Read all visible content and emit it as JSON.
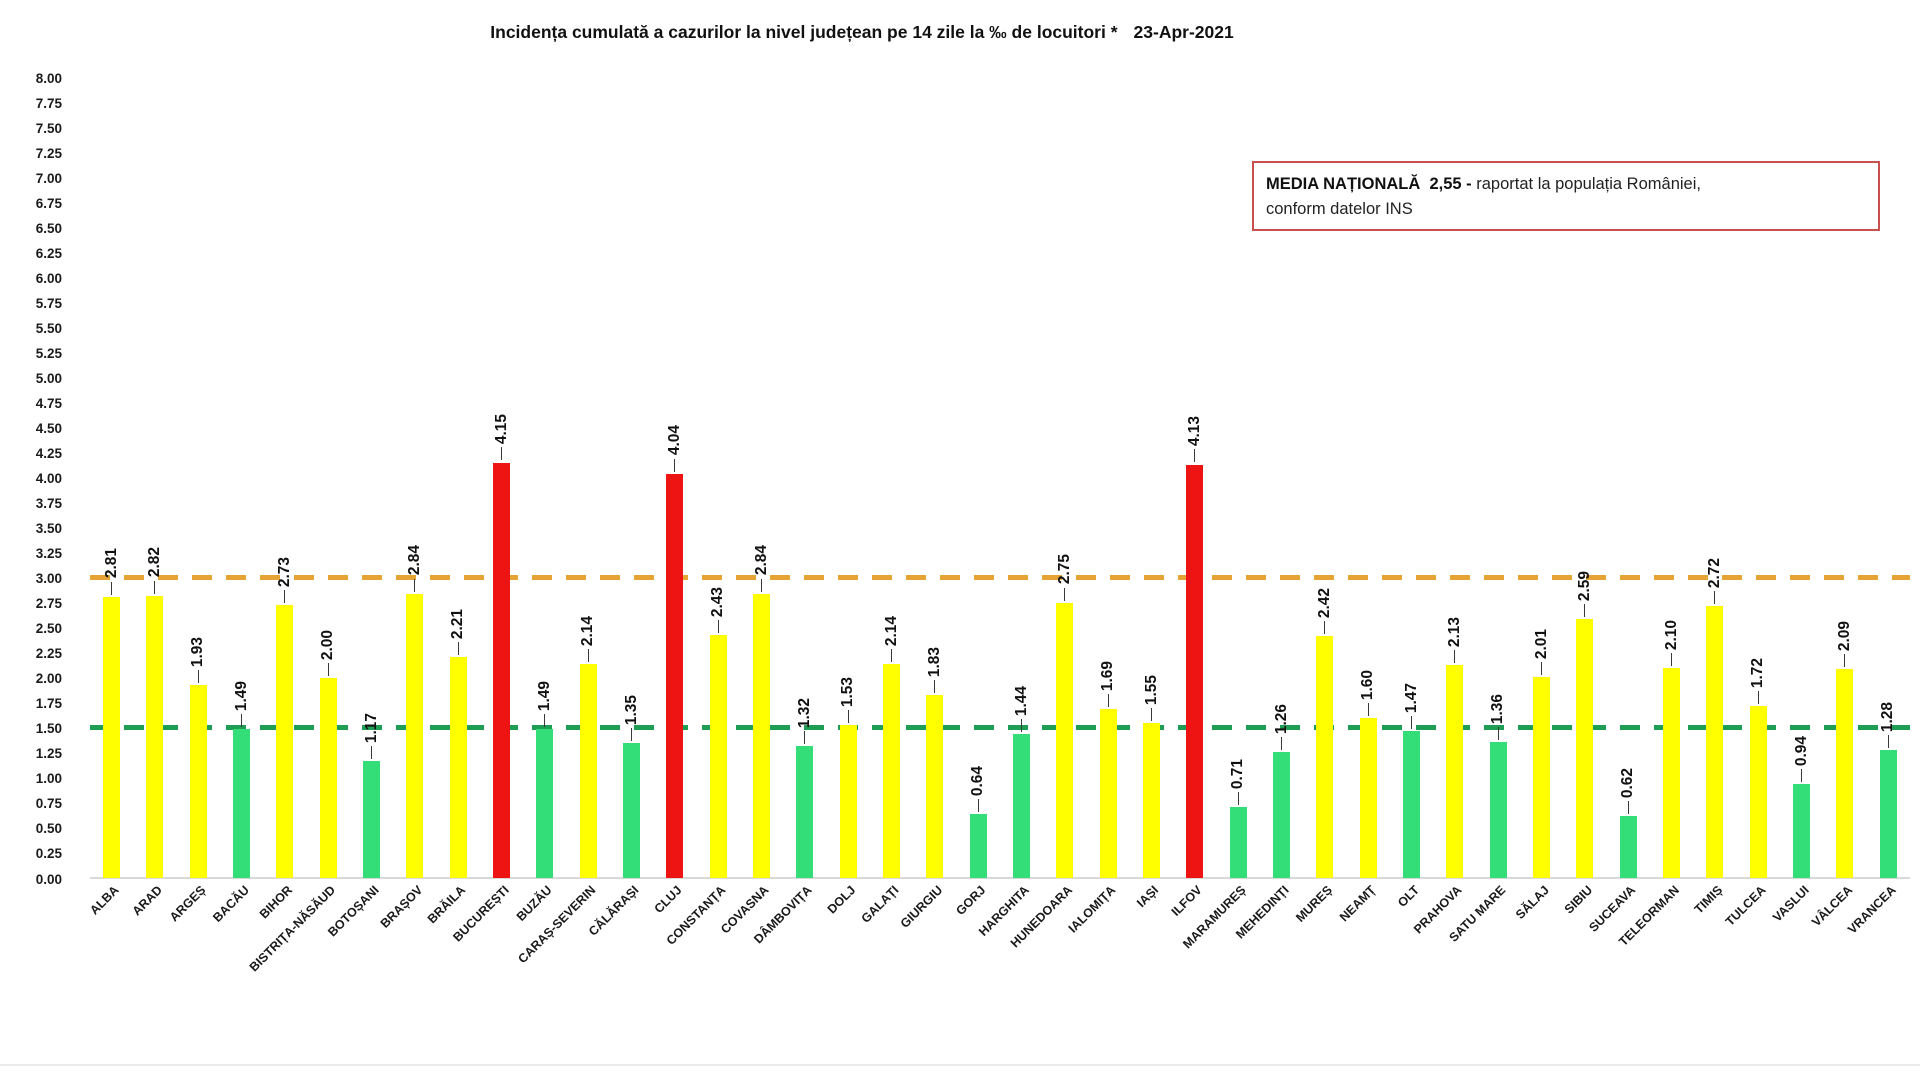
{
  "title": {
    "main": "Incidența cumulată a cazurilor la nivel județean pe 14 zile la ‰ de locuitori *",
    "date": "23-Apr-2021"
  },
  "national_box": {
    "bold": "MEDIA NAȚIONALĂ  2,55 -",
    "rest": " raportat la populația României,",
    "line2": "conform datelor INS"
  },
  "chart_data": {
    "type": "bar",
    "title": "Incidența cumulată a cazurilor la nivel județean pe 14 zile la ‰ de locuitori * 23-Apr-2021",
    "categories": [
      "ALBA",
      "ARAD",
      "ARGEȘ",
      "BACĂU",
      "BIHOR",
      "BISTRIȚA-NĂSĂUD",
      "BOTOȘANI",
      "BRAȘOV",
      "BRĂILA",
      "BUCUREȘTI",
      "BUZĂU",
      "CARAȘ-SEVERIN",
      "CĂLĂRAȘI",
      "CLUJ",
      "CONSTANȚA",
      "COVASNA",
      "DÂMBOVIȚA",
      "DOLJ",
      "GALAȚI",
      "GIURGIU",
      "GORJ",
      "HARGHITA",
      "HUNEDOARA",
      "IALOMIȚA",
      "IAȘI",
      "ILFOV",
      "MARAMUREȘ",
      "MEHEDINȚI",
      "MUREȘ",
      "NEAMȚ",
      "OLT",
      "PRAHOVA",
      "SATU MARE",
      "SĂLAJ",
      "SIBIU",
      "SUCEAVA",
      "TELEORMAN",
      "TIMIȘ",
      "TULCEA",
      "VASLUI",
      "VÂLCEA",
      "VRANCEA"
    ],
    "values": [
      2.81,
      2.82,
      1.93,
      1.49,
      2.73,
      2.0,
      1.17,
      2.84,
      2.21,
      4.15,
      1.49,
      2.14,
      1.35,
      4.04,
      2.43,
      2.84,
      1.32,
      1.53,
      2.14,
      1.83,
      0.64,
      1.44,
      2.75,
      1.69,
      1.55,
      4.13,
      0.71,
      1.26,
      2.42,
      1.6,
      1.47,
      2.13,
      1.36,
      2.01,
      2.59,
      0.62,
      2.1,
      2.72,
      1.72,
      0.94,
      2.09,
      1.28
    ],
    "axis": {
      "ymin": 0,
      "ymax": 8,
      "step": 0.25,
      "tick_labels": [
        "8.00",
        "7.75",
        "7.50",
        "7.25",
        "7.00",
        "6.75",
        "6.50",
        "6.25",
        "6.00",
        "5.75",
        "5.50",
        "5.25",
        "5.00",
        "4.75",
        "4.50",
        "4.25",
        "4.00",
        "3.75",
        "3.50",
        "3.25",
        "3.00",
        "2.75",
        "2.50",
        "2.25",
        "2.00",
        "1.75",
        "1.50",
        "1.25",
        "1.00",
        "0.75",
        "0.50",
        "0.25",
        "0.00"
      ]
    },
    "color_rules": {
      "red_min": 3.0,
      "yellow_min": 1.5,
      "red": "#ee1414",
      "yellow": "#ffff00",
      "green": "#33dd77"
    },
    "reference_lines": [
      {
        "name": "orange-threshold",
        "value": 3.0,
        "color": "#e5a433"
      },
      {
        "name": "green-threshold",
        "value": 1.5,
        "color": "#1e9e55"
      }
    ],
    "legend_position": "none",
    "grid": false
  }
}
